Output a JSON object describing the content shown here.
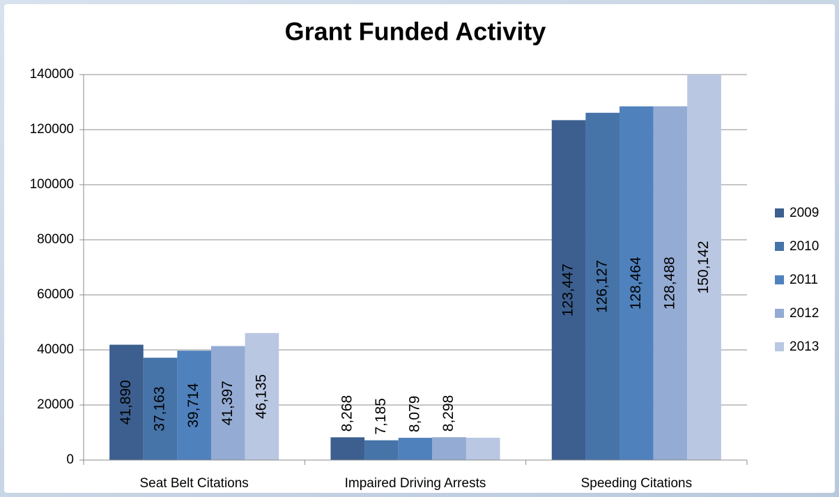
{
  "chart_data": {
    "type": "bar",
    "title": "Grant Funded Activity",
    "categories": [
      "Seat  Belt Citations",
      "Impaired Driving Arrests",
      "Speeding Citations"
    ],
    "series": [
      {
        "name": "2009",
        "color": "#3c5f8f",
        "values": [
          41890,
          8268,
          123447
        ],
        "value_labels": [
          "41,890",
          "8,268",
          "123,447"
        ]
      },
      {
        "name": "2010",
        "color": "#4673a8",
        "values": [
          37163,
          7185,
          126127
        ],
        "value_labels": [
          "37,163",
          "7,185",
          "126,127"
        ]
      },
      {
        "name": "2011",
        "color": "#4f81bd",
        "values": [
          39714,
          8079,
          128464
        ],
        "value_labels": [
          "39,714",
          "8,079",
          "128,464"
        ]
      },
      {
        "name": "2012",
        "color": "#94abd3",
        "values": [
          41397,
          8298,
          128488
        ],
        "value_labels": [
          "41,397",
          "8,298",
          "128,488"
        ]
      },
      {
        "name": "2013",
        "color": "#b9c7e2",
        "values": [
          46135,
          8100,
          150142
        ],
        "value_labels": [
          "46,135",
          null,
          "150,142"
        ]
      }
    ],
    "ylim": [
      0,
      140000
    ],
    "yticks": [
      0,
      20000,
      40000,
      60000,
      80000,
      100000,
      120000,
      140000
    ],
    "grid": true,
    "legend": "right"
  }
}
